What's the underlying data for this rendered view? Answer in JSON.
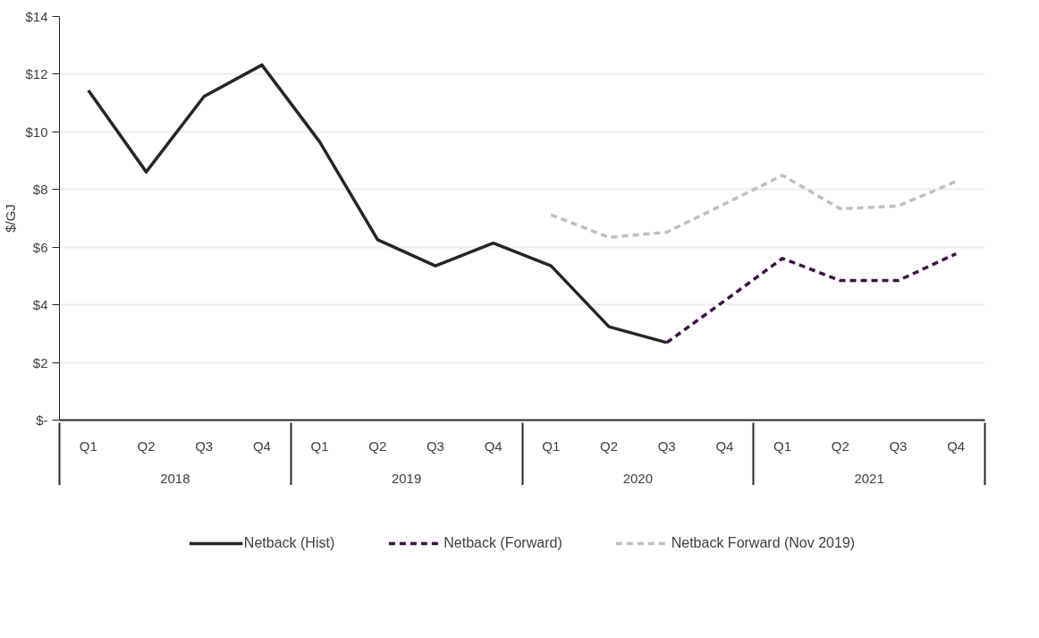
{
  "chart_data": {
    "type": "line",
    "ylabel": "$/GJ",
    "categories": [
      "Q1",
      "Q2",
      "Q3",
      "Q4",
      "Q1",
      "Q2",
      "Q3",
      "Q4",
      "Q1",
      "Q2",
      "Q3",
      "Q4",
      "Q1",
      "Q2",
      "Q3",
      "Q4"
    ],
    "annotations": [
      "2018",
      "2019",
      "2020",
      "2021"
    ],
    "series": [
      {
        "name": "Netback (Hist)",
        "color": "#262626",
        "line_style": "solid",
        "values": [
          11.44,
          8.61,
          11.23,
          12.32,
          9.65,
          6.26,
          5.35,
          6.14,
          5.35,
          3.24,
          2.69,
          null,
          null,
          null,
          null,
          null
        ]
      },
      {
        "name": "Netback (Forward)",
        "color": "#3b1441",
        "line_style": "dashed",
        "values": [
          null,
          null,
          null,
          null,
          null,
          null,
          null,
          null,
          null,
          null,
          2.69,
          4.14,
          5.61,
          4.84,
          4.84,
          5.77
        ]
      },
      {
        "name": "Netback Forward (Nov 2019)",
        "color": "#c0c0c0",
        "line_style": "dashed",
        "values": [
          null,
          null,
          null,
          null,
          null,
          null,
          null,
          null,
          7.12,
          6.34,
          6.52,
          7.5,
          8.49,
          7.33,
          7.43,
          8.28
        ]
      }
    ],
    "ylim": [
      0,
      14
    ],
    "yticks": [
      {
        "value": 0,
        "label": "$-"
      },
      {
        "value": 2,
        "label": "$2"
      },
      {
        "value": 4,
        "label": "$4"
      },
      {
        "value": 6,
        "label": "$6"
      },
      {
        "value": 8,
        "label": "$8"
      },
      {
        "value": 10,
        "label": "$10"
      },
      {
        "value": 12,
        "label": "$12"
      },
      {
        "value": 14,
        "label": "$14"
      }
    ],
    "grid": "y",
    "legend": "bottom"
  }
}
